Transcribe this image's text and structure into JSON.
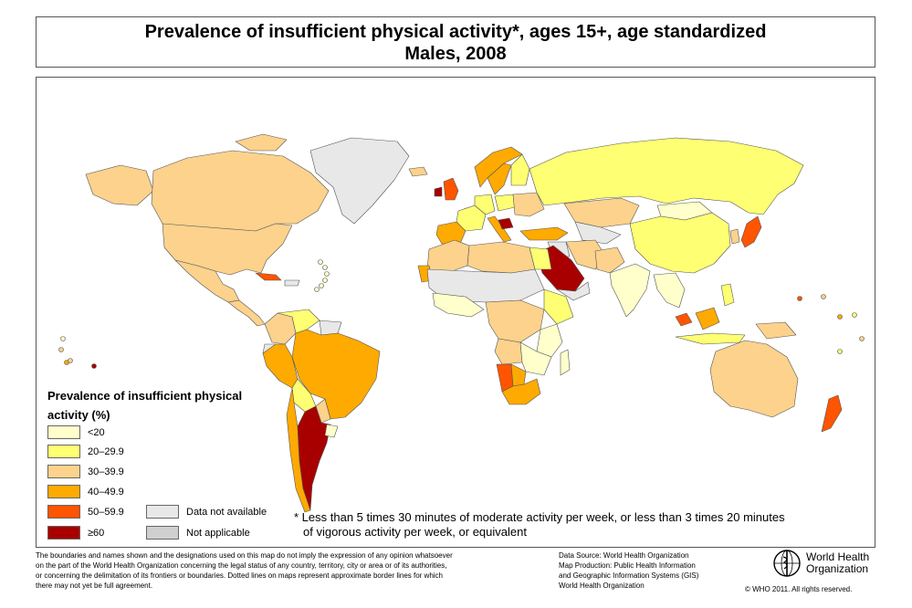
{
  "title": {
    "line1": "Prevalence of insufficient physical activity*, ages 15+, age standardized",
    "line2": "Males, 2008"
  },
  "legend": {
    "title": "Prevalence of insufficient physical activity (%)",
    "items": [
      {
        "label": "<20",
        "color": "#FFFFCC"
      },
      {
        "label": "20–29.9",
        "color": "#FFFF73"
      },
      {
        "label": "30–39.9",
        "color": "#FCD28C"
      },
      {
        "label": "40–49.9",
        "color": "#FFAA00"
      },
      {
        "label": "50–59.9",
        "color": "#FF5500"
      },
      {
        "label": "≥60",
        "color": "#A80000"
      }
    ],
    "extra": [
      {
        "label": "Data not available",
        "color": "#E8E8E8"
      },
      {
        "label": "Not applicable",
        "color": "#CFCFCF"
      }
    ]
  },
  "footnote": {
    "line1": "* Less than 5 times 30 minutes of moderate activity per week, or less than 3 times 20 minutes",
    "line2": "of vigorous activity per week, or equivalent"
  },
  "disclaimer": [
    "The boundaries and names shown and the designations used on this map do not imply the expression of any opinion whatsoever",
    "on the part of the World Health Organization concerning the legal status of any country, territory, city or area or of its authorities,",
    "or concerning the delimitation of its frontiers or boundaries.  Dotted lines on maps represent approximate border lines for which",
    "there may not yet be full agreement."
  ],
  "source": [
    "Data Source: World Health Organization",
    "Map Production: Public Health Information",
    "and Geographic Information Systems (GIS)",
    "World Health Organization"
  ],
  "logo": {
    "line1": "World Health",
    "line2": "Organization"
  },
  "copyright": "© WHO 2011. All rights reserved.",
  "map_colors": {
    "lt20": "#FFFFCC",
    "c20": "#FFFF73",
    "c30": "#FCD28C",
    "c40": "#FFAA00",
    "c50": "#FF5500",
    "c60": "#A80000",
    "na": "#E8E8E8",
    "notapp": "#CFCFCF",
    "border": "#555555"
  }
}
